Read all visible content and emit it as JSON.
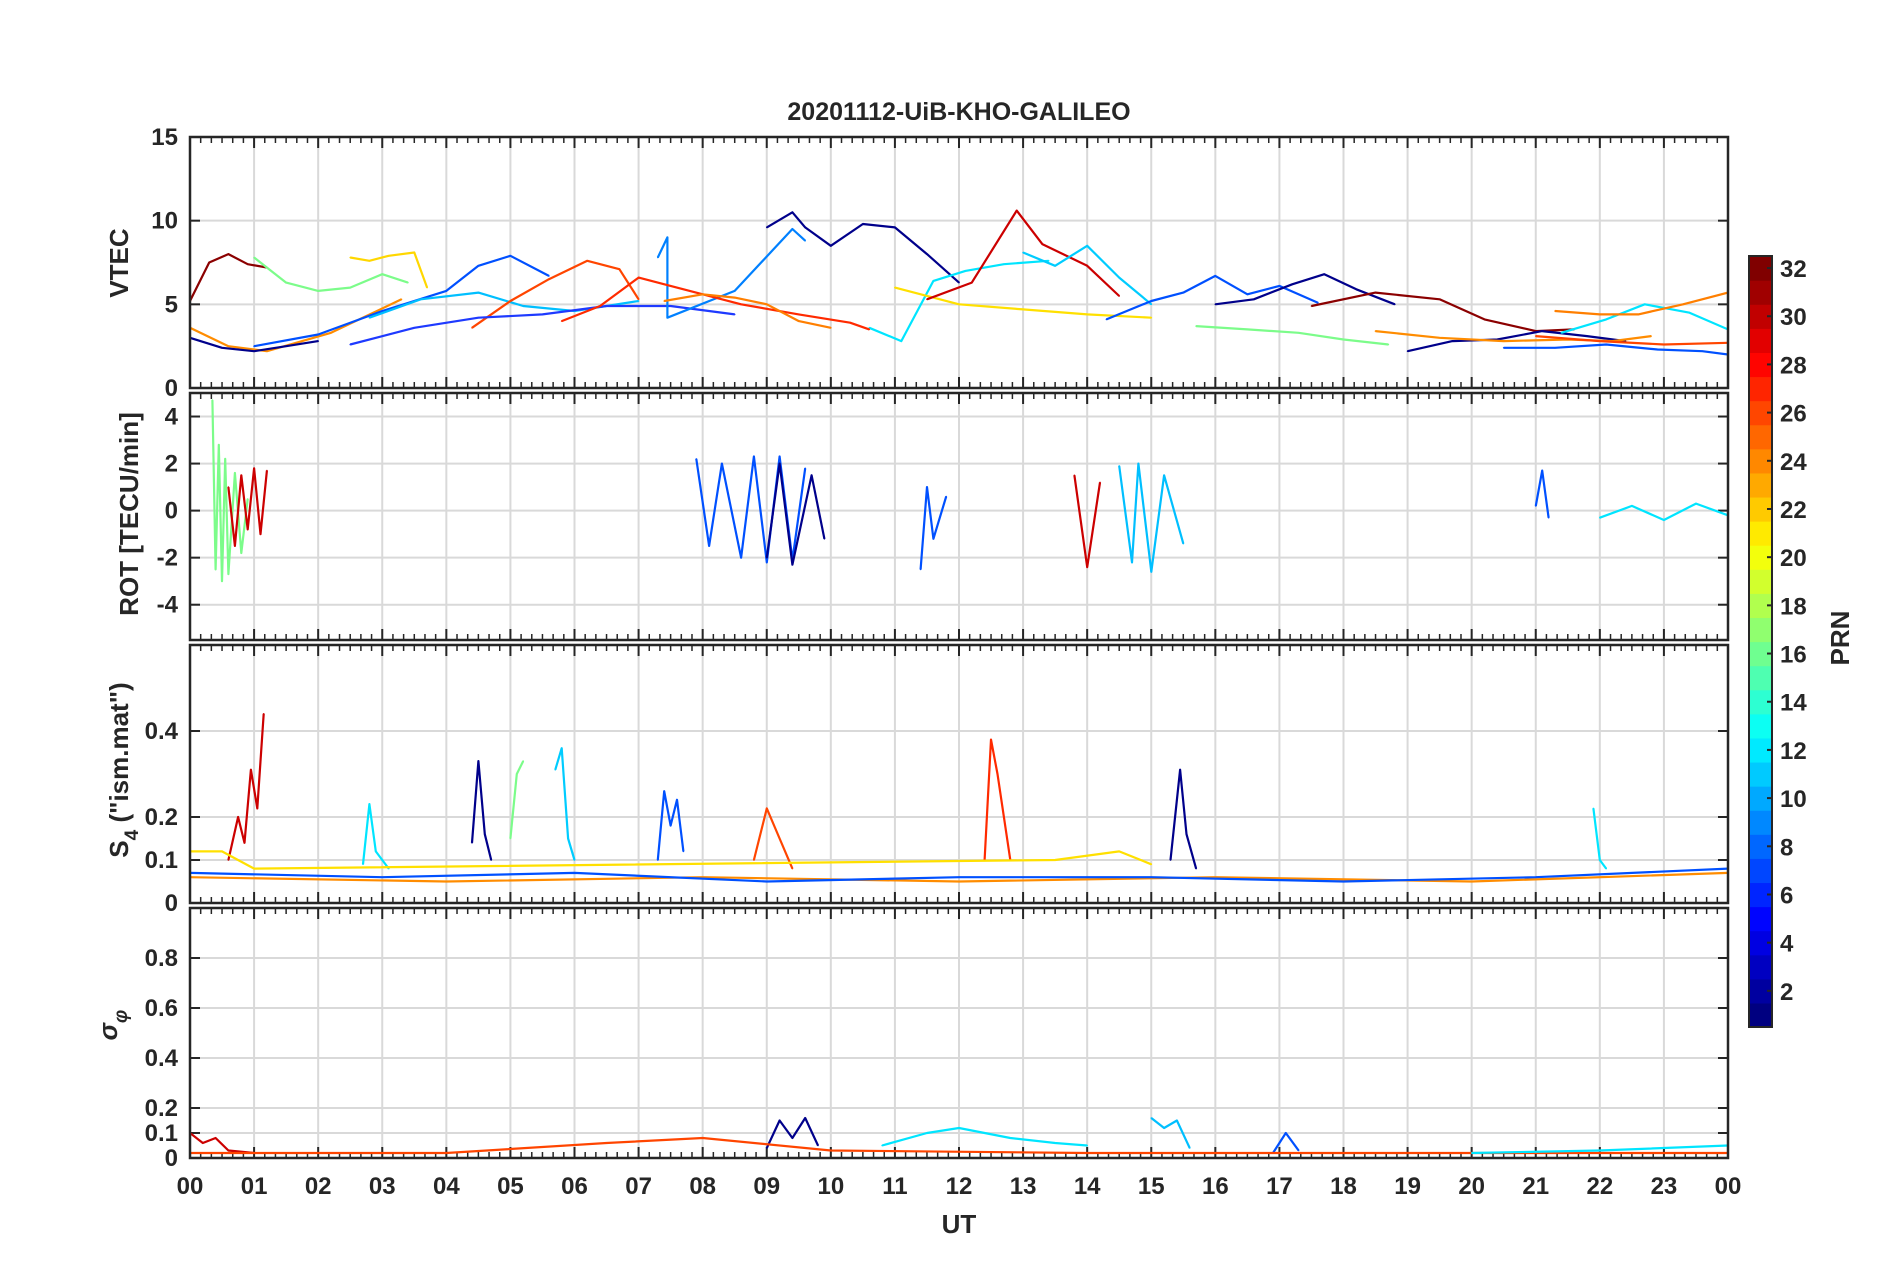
{
  "title": "20201112-UiB-KHO-GALILEO",
  "chart_data": [
    {
      "type": "line",
      "panel": "vtec",
      "ylabel": "VTEC",
      "ylim": [
        0,
        15
      ],
      "yticks": [
        0,
        5,
        10,
        15
      ],
      "grid": true,
      "series": [
        {
          "color": "#8b0000",
          "x": [
            0,
            0.3,
            0.6,
            0.9,
            1.2
          ],
          "values": [
            5.2,
            7.5,
            8.0,
            7.4,
            7.2
          ]
        },
        {
          "color": "#ff8c00",
          "x": [
            0,
            0.6,
            1.2,
            2.2,
            3.3
          ],
          "values": [
            3.6,
            2.5,
            2.2,
            3.3,
            5.3
          ]
        },
        {
          "color": "#00008b",
          "x": [
            0,
            0.5,
            1.0,
            1.5,
            2.0
          ],
          "values": [
            3.0,
            2.4,
            2.2,
            2.5,
            2.8
          ]
        },
        {
          "color": "#7cfc8a",
          "x": [
            1.0,
            1.5,
            2.0,
            2.5,
            3.0,
            3.4
          ],
          "values": [
            7.8,
            6.3,
            5.8,
            6.0,
            6.8,
            6.3
          ]
        },
        {
          "color": "#ffd700",
          "x": [
            2.5,
            2.8,
            3.1,
            3.5,
            3.7
          ],
          "values": [
            7.8,
            7.6,
            7.9,
            8.1,
            6.0
          ]
        },
        {
          "color": "#0050ff",
          "x": [
            1.0,
            2.0,
            3.0,
            4.0,
            4.5,
            5.0,
            5.6
          ],
          "values": [
            2.5,
            3.2,
            4.6,
            5.8,
            7.3,
            7.9,
            6.7
          ]
        },
        {
          "color": "#00bfff",
          "x": [
            2.8,
            3.6,
            4.5,
            5.2,
            6.0,
            7.0
          ],
          "values": [
            4.2,
            5.3,
            5.7,
            4.9,
            4.6,
            5.2
          ]
        },
        {
          "color": "#ff4500",
          "x": [
            4.4,
            5.0,
            5.6,
            6.2,
            6.7,
            7.0
          ],
          "values": [
            3.6,
            5.2,
            6.5,
            7.6,
            7.1,
            5.3
          ]
        },
        {
          "color": "#1e3aff",
          "x": [
            2.5,
            3.5,
            4.5,
            5.5,
            6.5,
            7.5,
            8.5
          ],
          "values": [
            2.6,
            3.6,
            4.2,
            4.4,
            4.9,
            4.9,
            4.4
          ]
        },
        {
          "color": "#0080ff",
          "x": [
            7.3,
            7.45,
            7.45,
            8.5,
            9.4,
            9.6
          ],
          "values": [
            7.8,
            9.0,
            4.2,
            5.8,
            9.5,
            8.8
          ]
        },
        {
          "color": "#00008b",
          "x": [
            9.0,
            9.4,
            9.6,
            10.0,
            10.5,
            11.0,
            11.5,
            12.0
          ],
          "values": [
            9.6,
            10.5,
            9.6,
            8.5,
            9.8,
            9.6,
            8.0,
            6.3
          ]
        },
        {
          "color": "#00e5ff",
          "x": [
            10.6,
            11.1,
            11.6,
            12.1,
            12.7,
            13.4
          ],
          "values": [
            3.6,
            2.8,
            6.4,
            7.0,
            7.4,
            7.6
          ]
        },
        {
          "color": "#ff2a00",
          "x": [
            5.8,
            6.4,
            7.0,
            7.5,
            8.6,
            9.5,
            10.3,
            10.6
          ],
          "values": [
            4.0,
            4.9,
            6.6,
            6.1,
            5.0,
            4.4,
            3.9,
            3.5
          ]
        },
        {
          "color": "#ff7f00",
          "x": [
            7.4,
            8.0,
            8.5,
            9.0,
            9.5,
            10.0
          ],
          "values": [
            5.2,
            5.6,
            5.4,
            5.0,
            4.0,
            3.6
          ]
        },
        {
          "color": "#ffe000",
          "x": [
            11.0,
            12.0,
            13.0,
            14.0,
            15.0
          ],
          "values": [
            6.0,
            5.0,
            4.7,
            4.4,
            4.2
          ]
        },
        {
          "color": "#cc0000",
          "x": [
            11.5,
            12.2,
            12.9,
            13.3,
            14.0,
            14.5
          ],
          "values": [
            5.3,
            6.3,
            10.6,
            8.6,
            7.3,
            5.5
          ]
        },
        {
          "color": "#00ccff",
          "x": [
            13.0,
            13.5,
            14.0,
            14.5,
            15.0
          ],
          "values": [
            8.1,
            7.3,
            8.5,
            6.6,
            5.0
          ]
        },
        {
          "color": "#0050ff",
          "x": [
            14.3,
            15.0,
            15.5,
            16.0,
            16.5,
            17.0,
            17.6
          ],
          "values": [
            4.1,
            5.2,
            5.7,
            6.7,
            5.6,
            6.1,
            5.1
          ]
        },
        {
          "color": "#00008b",
          "x": [
            16.0,
            16.6,
            17.2,
            17.7,
            18.2,
            18.8
          ],
          "values": [
            5.0,
            5.3,
            6.2,
            6.8,
            5.9,
            5.0
          ]
        },
        {
          "color": "#8b0000",
          "x": [
            17.5,
            18.5,
            19.5,
            20.2,
            21.0,
            21.6
          ],
          "values": [
            4.9,
            5.7,
            5.3,
            4.1,
            3.4,
            3.5
          ]
        },
        {
          "color": "#7cfc8a",
          "x": [
            15.7,
            16.5,
            17.3,
            18.0,
            18.7
          ],
          "values": [
            3.7,
            3.5,
            3.3,
            2.9,
            2.6
          ]
        },
        {
          "color": "#00008b",
          "x": [
            19.0,
            19.7,
            20.4,
            21.1,
            21.8,
            22.4
          ],
          "values": [
            2.2,
            2.8,
            2.9,
            3.4,
            3.1,
            2.8
          ]
        },
        {
          "color": "#ff8c00",
          "x": [
            18.5,
            19.5,
            20.5,
            21.5,
            22.2,
            22.8
          ],
          "values": [
            3.4,
            3.0,
            2.8,
            2.9,
            2.8,
            3.1
          ]
        },
        {
          "color": "#00e5ff",
          "x": [
            21.4,
            22.1,
            22.7,
            23.4,
            24.0
          ],
          "values": [
            3.3,
            4.1,
            5.0,
            4.5,
            3.5
          ]
        },
        {
          "color": "#ff7f00",
          "x": [
            21.3,
            22.0,
            22.6,
            23.3,
            24.0
          ],
          "values": [
            4.6,
            4.4,
            4.4,
            5.0,
            5.7
          ]
        },
        {
          "color": "#0050ff",
          "x": [
            20.5,
            21.3,
            22.1,
            22.9,
            23.6,
            24.0
          ],
          "values": [
            2.4,
            2.4,
            2.6,
            2.3,
            2.2,
            2.0
          ]
        },
        {
          "color": "#ff4500",
          "x": [
            21.0,
            22.0,
            23.0,
            24.0
          ],
          "values": [
            3.1,
            2.8,
            2.6,
            2.7
          ]
        }
      ]
    },
    {
      "type": "line",
      "panel": "rot",
      "ylabel": "ROT [TECU/min]",
      "ylim": [
        -5.5,
        5
      ],
      "yticks": [
        -4,
        -2,
        0,
        2,
        4
      ],
      "grid": true,
      "series": [
        {
          "color": "#7cfc8a",
          "x": [
            0.35,
            0.4,
            0.45,
            0.5,
            0.55,
            0.6,
            0.7,
            0.8,
            0.9
          ],
          "values": [
            4.7,
            -2.5,
            2.8,
            -3.0,
            2.2,
            -2.7,
            1.6,
            -1.8,
            0.5
          ]
        },
        {
          "color": "#cc0000",
          "x": [
            0.6,
            0.7,
            0.8,
            0.9,
            1.0,
            1.1,
            1.2
          ],
          "values": [
            1.0,
            -1.5,
            1.5,
            -0.8,
            1.8,
            -1.0,
            1.7
          ]
        },
        {
          "color": "#0050ff",
          "x": [
            7.9,
            8.1,
            8.3,
            8.6,
            8.8,
            9.0,
            9.2,
            9.4,
            9.6
          ],
          "values": [
            2.2,
            -1.5,
            2.0,
            -2.0,
            2.3,
            -2.2,
            2.3,
            -2.1,
            1.8
          ]
        },
        {
          "color": "#00008b",
          "x": [
            9.0,
            9.2,
            9.4,
            9.7,
            9.9
          ],
          "values": [
            -2.0,
            2.0,
            -2.3,
            1.5,
            -1.2
          ]
        },
        {
          "color": "#0050ff",
          "x": [
            11.4,
            11.5,
            11.6,
            11.8
          ],
          "values": [
            -2.5,
            1.0,
            -1.2,
            0.6
          ]
        },
        {
          "color": "#00bfff",
          "x": [
            14.5,
            14.7,
            14.8,
            15.0,
            15.2,
            15.5
          ],
          "values": [
            1.9,
            -2.2,
            2.0,
            -2.6,
            1.5,
            -1.4
          ]
        },
        {
          "color": "#cc0000",
          "x": [
            13.8,
            14.0,
            14.2
          ],
          "values": [
            1.5,
            -2.4,
            1.2
          ]
        },
        {
          "color": "#0050ff",
          "x": [
            21.0,
            21.1,
            21.2
          ],
          "values": [
            0.2,
            1.7,
            -0.3
          ]
        },
        {
          "color": "#00e5ff",
          "x": [
            22.0,
            22.5,
            23.0,
            23.5,
            24.0
          ],
          "values": [
            -0.3,
            0.2,
            -0.4,
            0.3,
            -0.2
          ]
        }
      ]
    },
    {
      "type": "line",
      "panel": "s4",
      "ylabel": "S4 (\"ism.mat\")",
      "ylabel_main": "S",
      "ylabel_sub": "4",
      "ylabel_rest": " (\"ism.mat\")",
      "ylim": [
        0,
        0.6
      ],
      "yticks": [
        0,
        0.1,
        0.2,
        0.4
      ],
      "grid": true,
      "series": [
        {
          "color": "#cc0000",
          "x": [
            0.6,
            0.75,
            0.85,
            0.95,
            1.05,
            1.15
          ],
          "values": [
            0.1,
            0.2,
            0.14,
            0.31,
            0.22,
            0.44
          ]
        },
        {
          "color": "#ff2a00",
          "x": [
            12.4,
            12.5,
            12.6,
            12.7,
            12.8
          ],
          "values": [
            0.1,
            0.38,
            0.3,
            0.2,
            0.1
          ]
        },
        {
          "color": "#0050ff",
          "x": [
            7.3,
            7.4,
            7.5,
            7.6,
            7.7
          ],
          "values": [
            0.1,
            0.26,
            0.18,
            0.24,
            0.12
          ]
        },
        {
          "color": "#00ccff",
          "x": [
            5.7,
            5.8,
            5.9,
            6.0
          ],
          "values": [
            0.31,
            0.36,
            0.15,
            0.1
          ]
        },
        {
          "color": "#00008b",
          "x": [
            4.4,
            4.5,
            4.6,
            4.7
          ],
          "values": [
            0.14,
            0.33,
            0.16,
            0.1
          ]
        },
        {
          "color": "#00008b",
          "x": [
            15.3,
            15.45,
            15.55,
            15.7
          ],
          "values": [
            0.1,
            0.31,
            0.16,
            0.08
          ]
        },
        {
          "color": "#ff4500",
          "x": [
            8.8,
            9.0,
            9.2,
            9.4
          ],
          "values": [
            0.1,
            0.22,
            0.15,
            0.08
          ]
        },
        {
          "color": "#00e5ff",
          "x": [
            2.7,
            2.8,
            2.9,
            3.1
          ],
          "values": [
            0.09,
            0.23,
            0.12,
            0.08
          ]
        },
        {
          "color": "#7cfc8a",
          "x": [
            5.0,
            5.1,
            5.2
          ],
          "values": [
            0.15,
            0.3,
            0.33
          ]
        },
        {
          "color": "#00e5ff",
          "x": [
            21.9,
            22.0,
            22.1
          ],
          "values": [
            0.22,
            0.1,
            0.08
          ]
        },
        {
          "color": "#ff8c00",
          "x": [
            0,
            4,
            8,
            12,
            16,
            20,
            24
          ],
          "values": [
            0.06,
            0.05,
            0.06,
            0.05,
            0.06,
            0.05,
            0.07
          ]
        },
        {
          "color": "#0050ff",
          "x": [
            0,
            3,
            6,
            9,
            12,
            15,
            18,
            21,
            24
          ],
          "values": [
            0.07,
            0.06,
            0.07,
            0.05,
            0.06,
            0.06,
            0.05,
            0.06,
            0.08
          ]
        },
        {
          "color": "#ffe000",
          "x": [
            0,
            0.5,
            1.0,
            13.5,
            14.5,
            15.0
          ],
          "values": [
            0.12,
            0.12,
            0.08,
            0.1,
            0.12,
            0.09
          ]
        }
      ]
    },
    {
      "type": "line",
      "panel": "sigma",
      "ylabel": "σφ",
      "ylabel_main": "σ",
      "ylabel_sub": "φ",
      "ylim": [
        0,
        1
      ],
      "yticks": [
        0,
        0.1,
        0.2,
        0.4,
        0.6,
        0.8
      ],
      "xlabel": "UT",
      "xticks": [
        "00",
        "01",
        "02",
        "03",
        "04",
        "05",
        "06",
        "07",
        "08",
        "09",
        "10",
        "11",
        "12",
        "13",
        "14",
        "15",
        "16",
        "17",
        "18",
        "19",
        "20",
        "21",
        "22",
        "23",
        "00"
      ],
      "xlim": [
        0,
        24
      ],
      "grid": true,
      "series": [
        {
          "color": "#cc0000",
          "x": [
            0,
            0.2,
            0.4,
            0.6,
            1.0
          ],
          "values": [
            0.1,
            0.06,
            0.08,
            0.03,
            0.02
          ]
        },
        {
          "color": "#00008b",
          "x": [
            9.0,
            9.2,
            9.4,
            9.6,
            9.8
          ],
          "values": [
            0.04,
            0.15,
            0.08,
            0.16,
            0.05
          ]
        },
        {
          "color": "#00e5ff",
          "x": [
            10.8,
            11.5,
            12.0,
            12.8,
            13.5,
            14.0
          ],
          "values": [
            0.05,
            0.1,
            0.12,
            0.08,
            0.06,
            0.05
          ]
        },
        {
          "color": "#00bfff",
          "x": [
            15.0,
            15.2,
            15.4,
            15.6
          ],
          "values": [
            0.16,
            0.12,
            0.15,
            0.04
          ]
        },
        {
          "color": "#0050ff",
          "x": [
            16.9,
            17.1,
            17.3
          ],
          "values": [
            0.02,
            0.1,
            0.03
          ]
        },
        {
          "color": "#ff4500",
          "x": [
            0,
            4,
            6.5,
            8,
            10,
            14,
            18,
            24
          ],
          "values": [
            0.02,
            0.02,
            0.06,
            0.08,
            0.03,
            0.02,
            0.02,
            0.02
          ]
        },
        {
          "color": "#00e5ff",
          "x": [
            20,
            22,
            24
          ],
          "values": [
            0.02,
            0.03,
            0.05
          ]
        }
      ]
    },
    {
      "type": "heatmap",
      "panel": "colorbar",
      "label": "PRN",
      "range": [
        1,
        32
      ],
      "ticks": [
        "32",
        "30",
        "28",
        "26",
        "24",
        "22",
        "20",
        "18",
        "16",
        "14",
        "12",
        "10",
        "8",
        "6",
        "4",
        "2"
      ]
    }
  ]
}
